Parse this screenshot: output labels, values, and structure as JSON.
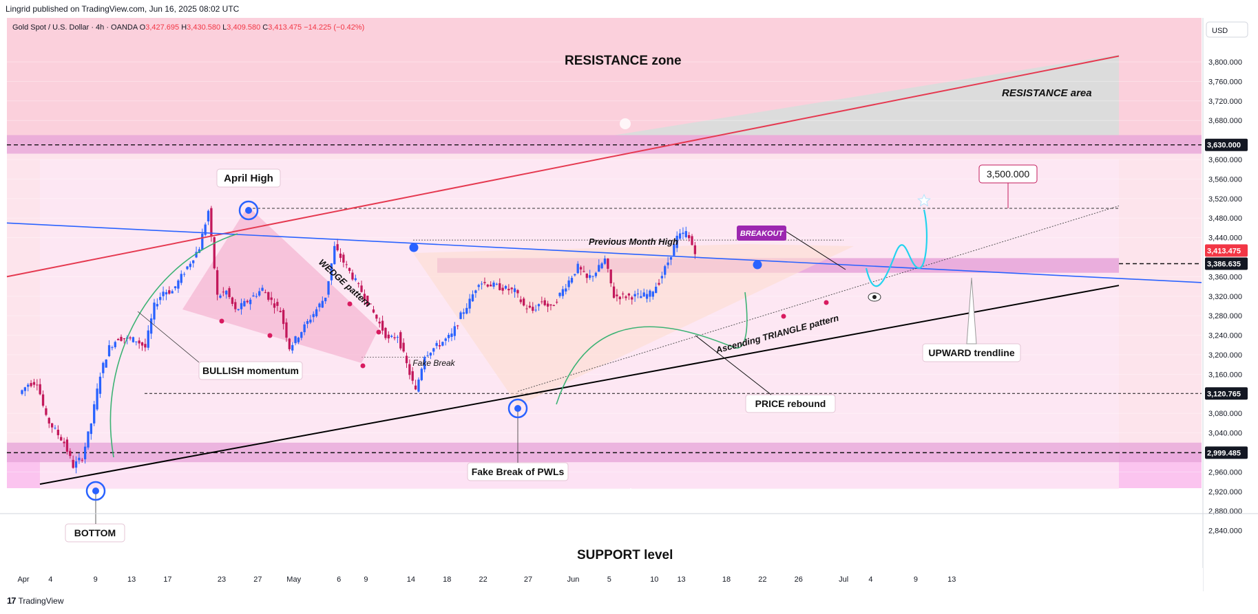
{
  "header": {
    "publish_line": "Lingrid published on TradingView.com, Jun 16, 2025 08:02 UTC"
  },
  "legend": {
    "symbol": "Gold Spot / U.S. Dollar · 4h · OANDA",
    "o_label": "O",
    "o": "3,427.695",
    "h_label": "H",
    "h": "3,430.580",
    "l_label": "L",
    "l": "3,409.580",
    "c_label": "C",
    "c": "3,413.475",
    "change": "−14.225 (−0.42%)"
  },
  "currency": "USD",
  "footer": {
    "brand": "TradingView"
  },
  "colors": {
    "bull": "#2962ff",
    "bear": "#c2185b",
    "resistance_line": "#e53950",
    "blue_trend": "#2962ff",
    "support_line": "#000000",
    "pink_zone": "#e6a3d8"
  },
  "chart_data": {
    "type": "candlestick",
    "symbol": "Gold Spot / U.S. Dollar",
    "timeframe": "4h",
    "y_ticks": [
      2840,
      2880,
      2920,
      2960,
      3040,
      3080,
      3160,
      3200,
      3240,
      3280,
      3320,
      3360,
      3440,
      3480,
      3520,
      3560,
      3600,
      3680,
      3720,
      3760,
      3800
    ],
    "y_tick_labels": [
      "2,840.000",
      "2,880.000",
      "2,920.000",
      "2,960.000",
      "3,040.000",
      "3,080.000",
      "3,160.000",
      "3,200.000",
      "3,240.000",
      "3,280.000",
      "3,320.000",
      "3,360.000",
      "3,440.000",
      "3,480.000",
      "3,520.000",
      "3,560.000",
      "3,600.000",
      "3,680.000",
      "3,720.000",
      "3,760.000",
      "3,800.000"
    ],
    "ylim": [
      2800,
      3840
    ],
    "x_ticks": [
      "Apr",
      "4",
      "9",
      "13",
      "17",
      "23",
      "27",
      "May",
      "6",
      "9",
      "14",
      "18",
      "22",
      "27",
      "Jun",
      "5",
      "10",
      "13",
      "18",
      "22",
      "26",
      "Jul",
      "4",
      "9",
      "13"
    ],
    "x_tick_dates": [
      "2025-04-01",
      "2025-04-04",
      "2025-04-09",
      "2025-04-13",
      "2025-04-17",
      "2025-04-23",
      "2025-04-27",
      "2025-05-01",
      "2025-05-06",
      "2025-05-09",
      "2025-05-14",
      "2025-05-18",
      "2025-05-22",
      "2025-05-27",
      "2025-06-01",
      "2025-06-05",
      "2025-06-10",
      "2025-06-13",
      "2025-06-18",
      "2025-06-22",
      "2025-06-26",
      "2025-07-01",
      "2025-07-04",
      "2025-07-09",
      "2025-07-13"
    ],
    "price_labels": [
      {
        "value": 3630,
        "text": "3,630.000",
        "style": "dark"
      },
      {
        "value": 3413.475,
        "text": "3,413.475",
        "style": "red"
      },
      {
        "value": 3386.635,
        "text": "3,386.635",
        "style": "dark"
      },
      {
        "value": 3120.765,
        "text": "3,120.765",
        "style": "dark"
      },
      {
        "value": 2999.485,
        "text": "2,999.485",
        "style": "dark"
      }
    ],
    "price_path": [
      [
        "2025-04-01",
        3120
      ],
      [
        "2025-04-02",
        3140
      ],
      [
        "2025-04-03",
        3145
      ],
      [
        "2025-04-04",
        3070
      ],
      [
        "2025-04-06",
        3020
      ],
      [
        "2025-04-07",
        2972
      ],
      [
        "2025-04-08",
        2990
      ],
      [
        "2025-04-09",
        3060
      ],
      [
        "2025-04-10",
        3160
      ],
      [
        "2025-04-11",
        3215
      ],
      [
        "2025-04-12",
        3235
      ],
      [
        "2025-04-14",
        3230
      ],
      [
        "2025-04-15",
        3215
      ],
      [
        "2025-04-16",
        3300
      ],
      [
        "2025-04-17",
        3330
      ],
      [
        "2025-04-18",
        3330
      ],
      [
        "2025-04-21",
        3420
      ],
      [
        "2025-04-22",
        3495
      ],
      [
        "2025-04-23",
        3320
      ],
      [
        "2025-04-24",
        3330
      ],
      [
        "2025-04-25",
        3290
      ],
      [
        "2025-04-28",
        3335
      ],
      [
        "2025-04-29",
        3310
      ],
      [
        "2025-04-30",
        3290
      ],
      [
        "2025-05-01",
        3215
      ],
      [
        "2025-05-02",
        3240
      ],
      [
        "2025-05-05",
        3320
      ],
      [
        "2025-05-06",
        3420
      ],
      [
        "2025-05-07",
        3390
      ],
      [
        "2025-05-08",
        3360
      ],
      [
        "2025-05-09",
        3330
      ],
      [
        "2025-05-12",
        3230
      ],
      [
        "2025-05-13",
        3240
      ],
      [
        "2025-05-14",
        3180
      ],
      [
        "2025-05-15",
        3125
      ],
      [
        "2025-05-16",
        3200
      ],
      [
        "2025-05-19",
        3240
      ],
      [
        "2025-05-20",
        3280
      ],
      [
        "2025-05-21",
        3310
      ],
      [
        "2025-05-22",
        3350
      ],
      [
        "2025-05-23",
        3345
      ],
      [
        "2025-05-26",
        3330
      ],
      [
        "2025-05-27",
        3300
      ],
      [
        "2025-05-28",
        3290
      ],
      [
        "2025-05-29",
        3310
      ],
      [
        "2025-05-30",
        3295
      ],
      [
        "2025-06-02",
        3380
      ],
      [
        "2025-06-03",
        3355
      ],
      [
        "2025-06-04",
        3370
      ],
      [
        "2025-06-05",
        3395
      ],
      [
        "2025-06-06",
        3320
      ],
      [
        "2025-06-09",
        3320
      ],
      [
        "2025-06-10",
        3325
      ],
      [
        "2025-06-11",
        3350
      ],
      [
        "2025-06-12",
        3390
      ],
      [
        "2025-06-13",
        3440
      ],
      [
        "2025-06-14",
        3450
      ],
      [
        "2025-06-15",
        3413
      ]
    ],
    "levels": [
      {
        "name": "Previous Month High",
        "value": 3435
      },
      {
        "name": "April High",
        "value": 3500
      },
      {
        "name": "support zone",
        "range": [
          2980,
          3020
        ]
      },
      {
        "name": "resistance zone band",
        "range": [
          3612,
          3650
        ]
      },
      {
        "name": "breakout zone",
        "range": [
          3368,
          3398
        ]
      }
    ],
    "annotations": [
      "RESISTANCE zone",
      "RESISTANCE area",
      "April High",
      "WEDGE pattern",
      "BULLISH momentum",
      "BOTTOM",
      "Previous Month High",
      "BREAKOUT",
      "Fake Break",
      "Fake Break of PWLs",
      "PRICE rebound",
      "Ascending TRIANGLE pattern",
      "UPWARD trendline",
      "3,500.000",
      "SUPPORT level"
    ]
  }
}
